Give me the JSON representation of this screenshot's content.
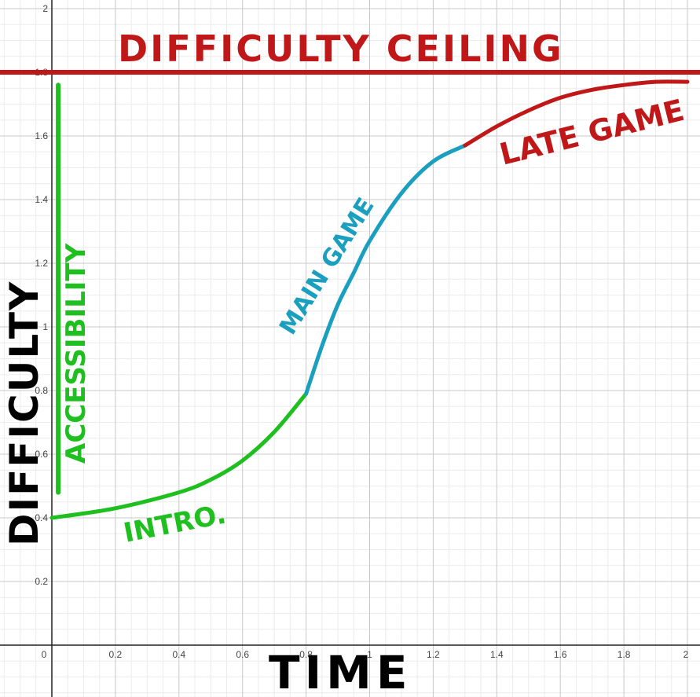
{
  "chart_data": {
    "type": "line",
    "title": "",
    "xlabel": "TIME",
    "ylabel": "DIFFICULTY",
    "xlim": [
      0,
      2
    ],
    "ylim": [
      0,
      2
    ],
    "grid": true,
    "x_ticks": [
      "0",
      "0.2",
      "0.4",
      "0.6",
      "0.8",
      "1",
      "1.2",
      "1.4",
      "1.6",
      "1.8",
      "2"
    ],
    "y_ticks": [
      "0.2",
      "0.4",
      "0.6",
      "0.8",
      "1",
      "1.2",
      "1.4",
      "1.6",
      "1.8",
      "2"
    ],
    "series": [
      {
        "name": "INTRO.",
        "color": "#1fbf1f",
        "points": [
          [
            0,
            0.4
          ],
          [
            0.2,
            0.43
          ],
          [
            0.4,
            0.48
          ],
          [
            0.5,
            0.52
          ],
          [
            0.6,
            0.58
          ],
          [
            0.7,
            0.67
          ],
          [
            0.8,
            0.79
          ]
        ]
      },
      {
        "name": "MAIN GAME",
        "color": "#1a9fbf",
        "points": [
          [
            0.8,
            0.79
          ],
          [
            0.85,
            0.94
          ],
          [
            0.9,
            1.07
          ],
          [
            0.95,
            1.17
          ],
          [
            1.0,
            1.27
          ],
          [
            1.1,
            1.42
          ],
          [
            1.2,
            1.52
          ],
          [
            1.3,
            1.57
          ]
        ]
      },
      {
        "name": "LATE GAME",
        "color": "#c01818",
        "points": [
          [
            1.3,
            1.57
          ],
          [
            1.4,
            1.63
          ],
          [
            1.5,
            1.68
          ],
          [
            1.6,
            1.72
          ],
          [
            1.7,
            1.745
          ],
          [
            1.8,
            1.76
          ],
          [
            1.9,
            1.77
          ],
          [
            2.0,
            1.77
          ]
        ]
      }
    ],
    "reference_lines": [
      {
        "label": "DIFFICULTY CEILING",
        "orientation": "horizontal",
        "y": 1.8,
        "color": "#c01818"
      },
      {
        "label": "ACCESSIBILITY",
        "orientation": "vertical",
        "x": 0.02,
        "y_range": [
          0.48,
          1.76
        ],
        "color": "#1fbf1f"
      }
    ]
  }
}
